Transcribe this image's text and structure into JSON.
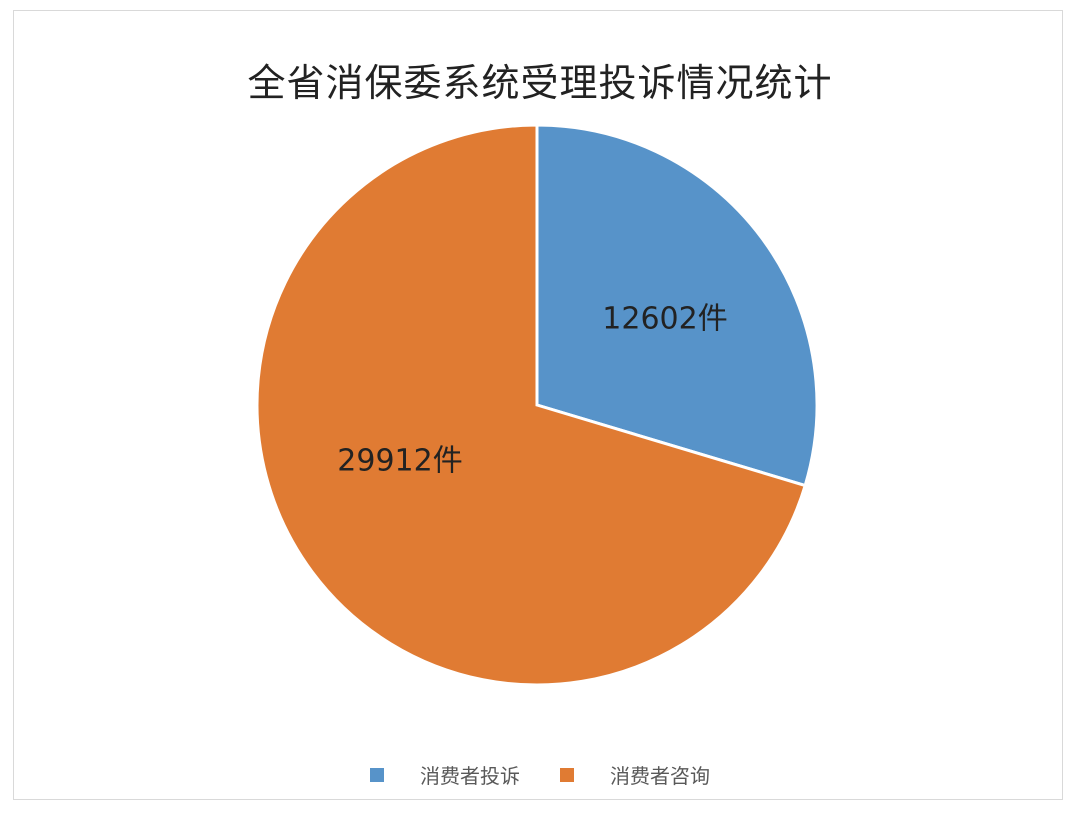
{
  "chart_data": {
    "type": "pie",
    "title": "全省消保委系统受理投诉情况统计",
    "categories": [
      "消费者投诉",
      "消费者咨询"
    ],
    "values": [
      12602,
      29912
    ],
    "data_labels": [
      "12602件",
      "29912件"
    ],
    "colors": [
      "#5793c9",
      "#e07b33"
    ],
    "start_angle": "top",
    "direction": "clockwise",
    "legend_position": "bottom"
  }
}
